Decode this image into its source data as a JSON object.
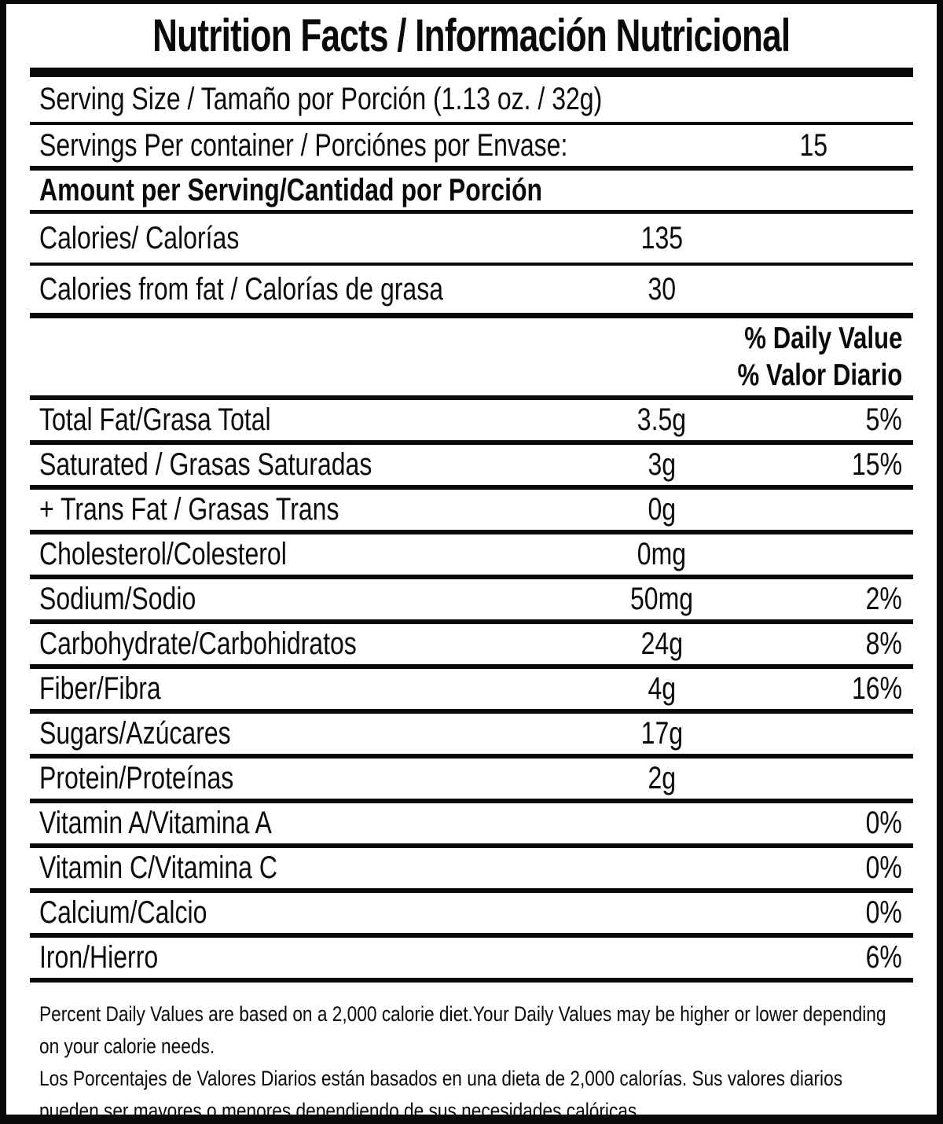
{
  "label": {
    "title": "Nutrition Facts / Información Nutricional",
    "serving_size": "Serving Size / Tamaño por Porción (1.13 oz. / 32g)",
    "servings_per_container": {
      "label": "Servings Per container / Porciónes por Envase:",
      "value": "15"
    },
    "amount_per_serving_header": "Amount per Serving/Cantidad por Porción",
    "calories": {
      "label": "Calories/ Calorías",
      "value": "135"
    },
    "calories_from_fat": {
      "label": "Calories from fat / Calorías de grasa",
      "value": "30"
    },
    "daily_value_header": {
      "line1": "% Daily Value",
      "line2": "% Valor Diario"
    },
    "nutrients": [
      {
        "label": "Total Fat/Grasa Total",
        "amount": "3.5g",
        "dv": "5%"
      },
      {
        "label": "Saturated / Grasas Saturadas",
        "amount": "3g",
        "dv": "15%"
      },
      {
        "label": "+ Trans Fat / Grasas Trans",
        "amount": "0g",
        "dv": ""
      },
      {
        "label": "Cholesterol/Colesterol",
        "amount": "0mg",
        "dv": ""
      },
      {
        "label": "Sodium/Sodio",
        "amount": "50mg",
        "dv": "2%"
      },
      {
        "label": "Carbohydrate/Carbohidratos",
        "amount": "24g",
        "dv": "8%"
      },
      {
        "label": "Fiber/Fibra",
        "amount": "4g",
        "dv": "16%"
      },
      {
        "label": "Sugars/Azúcares",
        "amount": "17g",
        "dv": ""
      },
      {
        "label": "Protein/Proteínas",
        "amount": "2g",
        "dv": ""
      },
      {
        "label": "Vitamin A/Vitamina A",
        "amount": "",
        "dv": "0%"
      },
      {
        "label": "Vitamin C/Vitamina C",
        "amount": "",
        "dv": "0%"
      },
      {
        "label": "Calcium/Calcio",
        "amount": "",
        "dv": "0%"
      },
      {
        "label": "Iron/Hierro",
        "amount": "",
        "dv": "6%"
      }
    ],
    "footnote_en": "Percent Daily Values are based on a 2,000 calorie diet.Your Daily Values may be higher or lower depending on your calorie needs.",
    "footnote_es": "Los Porcentajes de Valores Diarios están basados en una dieta de 2,000 calorías. Sus valores diarios pueden ser mayores o menores dependiendo de sus necesidades calóricas",
    "colors": {
      "ink": "#0a0a0a",
      "background": "#ffffff"
    }
  }
}
